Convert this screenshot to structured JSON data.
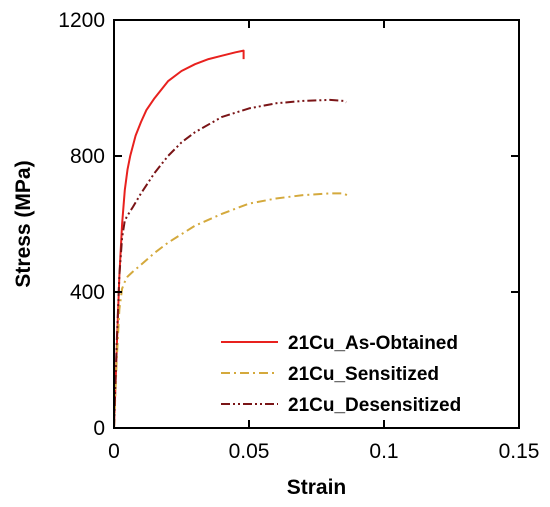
{
  "chart_data": {
    "type": "line",
    "xlabel": "Strain",
    "ylabel": "Stress (MPa)",
    "xlim": [
      0,
      0.15
    ],
    "ylim": [
      0,
      1200
    ],
    "x_ticks": [
      0,
      0.05,
      0.1,
      0.15
    ],
    "x_tick_labels": [
      "0",
      "0.05",
      "0.1",
      "0.15"
    ],
    "y_ticks": [
      0,
      400,
      800,
      1200
    ],
    "y_tick_labels": [
      "0",
      "400",
      "800",
      "1200"
    ],
    "grid": false,
    "legend_position": "bottom-right",
    "series": [
      {
        "name": "21Cu_As-Obtained",
        "color": "#e8211e",
        "line_style": "solid",
        "x": [
          0,
          0.001,
          0.002,
          0.003,
          0.004,
          0.005,
          0.006,
          0.008,
          0.01,
          0.012,
          0.015,
          0.02,
          0.025,
          0.03,
          0.035,
          0.04,
          0.045,
          0.048,
          0.048
        ],
        "y": [
          0,
          230,
          450,
          600,
          700,
          760,
          800,
          860,
          900,
          935,
          970,
          1020,
          1050,
          1070,
          1085,
          1095,
          1105,
          1110,
          1085
        ]
      },
      {
        "name": "21Cu_Sensitized",
        "color": "#d4a93c",
        "line_style": "dash-dot",
        "x": [
          0,
          0.001,
          0.002,
          0.003,
          0.004,
          0.005,
          0.007,
          0.01,
          0.015,
          0.02,
          0.025,
          0.03,
          0.04,
          0.05,
          0.06,
          0.07,
          0.08,
          0.085,
          0.087
        ],
        "y": [
          0,
          200,
          350,
          410,
          430,
          445,
          460,
          480,
          515,
          545,
          570,
          595,
          630,
          660,
          675,
          685,
          690,
          690,
          682
        ]
      },
      {
        "name": "21Cu_Desensitized",
        "color": "#7a1416",
        "line_style": "dash-dot-dot",
        "x": [
          0,
          0.001,
          0.002,
          0.003,
          0.004,
          0.005,
          0.007,
          0.01,
          0.015,
          0.02,
          0.025,
          0.03,
          0.04,
          0.05,
          0.06,
          0.07,
          0.08,
          0.085,
          0.086
        ],
        "y": [
          0,
          250,
          450,
          560,
          610,
          625,
          650,
          690,
          750,
          800,
          840,
          870,
          915,
          940,
          955,
          962,
          965,
          962,
          958
        ]
      }
    ]
  }
}
